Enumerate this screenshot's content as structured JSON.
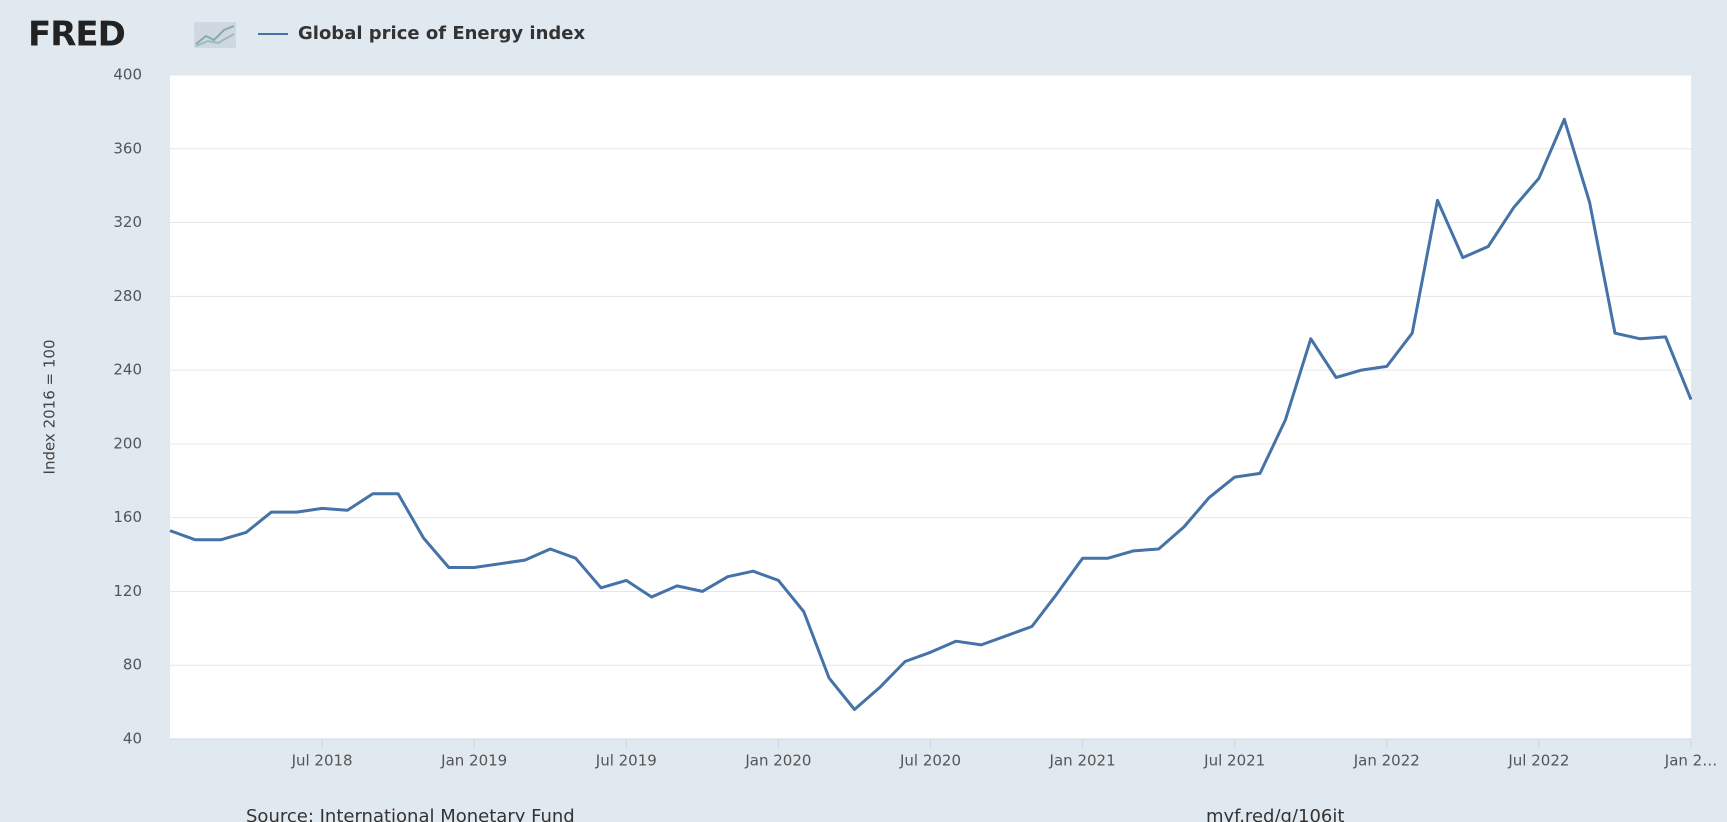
{
  "chart_data": {
    "type": "line",
    "brand": "FRED",
    "y_label": "Index 2016 = 100",
    "source": "Source: International Monetary Fund",
    "link": "myf.red/g/106it",
    "x": [
      "2018-01",
      "2018-02",
      "2018-03",
      "2018-04",
      "2018-05",
      "2018-06",
      "2018-07",
      "2018-08",
      "2018-09",
      "2018-10",
      "2018-11",
      "2018-12",
      "2019-01",
      "2019-02",
      "2019-03",
      "2019-04",
      "2019-05",
      "2019-06",
      "2019-07",
      "2019-08",
      "2019-09",
      "2019-10",
      "2019-11",
      "2019-12",
      "2020-01",
      "2020-02",
      "2020-03",
      "2020-04",
      "2020-05",
      "2020-06",
      "2020-07",
      "2020-08",
      "2020-09",
      "2020-10",
      "2020-11",
      "2020-12",
      "2021-01",
      "2021-02",
      "2021-03",
      "2021-04",
      "2021-05",
      "2021-06",
      "2021-07",
      "2021-08",
      "2021-09",
      "2021-10",
      "2021-11",
      "2021-12",
      "2022-01",
      "2022-02",
      "2022-03",
      "2022-04",
      "2022-05",
      "2022-06",
      "2022-07",
      "2022-08",
      "2022-09",
      "2022-10",
      "2022-11",
      "2022-12",
      "2023-01"
    ],
    "series": [
      {
        "name": "Global price of Energy index",
        "color": "#4572a7",
        "values": [
          153,
          148,
          148,
          152,
          163,
          163,
          165,
          164,
          173,
          173,
          149,
          133,
          133,
          135,
          137,
          143,
          138,
          122,
          126,
          117,
          123,
          120,
          128,
          131,
          126,
          109,
          73,
          56,
          68,
          82,
          87,
          93,
          91,
          96,
          101,
          119,
          138,
          138,
          142,
          143,
          155,
          171,
          182,
          184,
          213,
          257,
          236,
          240,
          242,
          260,
          332,
          301,
          307,
          328,
          344,
          376,
          331,
          260,
          257,
          258,
          224
        ]
      }
    ],
    "xlim": [
      "2018-01",
      "2023-01"
    ],
    "xticks": [
      {
        "value": "2018-07",
        "label": "Jul 2018"
      },
      {
        "value": "2019-01",
        "label": "Jan 2019"
      },
      {
        "value": "2019-07",
        "label": "Jul 2019"
      },
      {
        "value": "2020-01",
        "label": "Jan 2020"
      },
      {
        "value": "2020-07",
        "label": "Jul 2020"
      },
      {
        "value": "2021-01",
        "label": "Jan 2021"
      },
      {
        "value": "2021-07",
        "label": "Jul 2021"
      },
      {
        "value": "2022-01",
        "label": "Jan 2022"
      },
      {
        "value": "2022-07",
        "label": "Jul 2022"
      },
      {
        "value": "2023-01",
        "label": "Jan 2…"
      }
    ],
    "ylim": [
      40,
      400
    ],
    "yticks": [
      40,
      80,
      120,
      160,
      200,
      240,
      280,
      320,
      360,
      400
    ],
    "grid": true
  }
}
